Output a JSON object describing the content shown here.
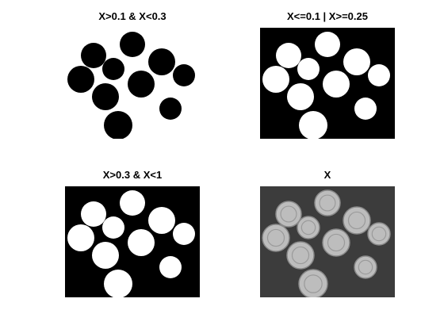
{
  "chart_data": [
    {
      "type": "image",
      "title": "X>0.1 & X<0.3",
      "foreground": "#000000",
      "background": "#ffffff",
      "render": "mask"
    },
    {
      "type": "image",
      "title": "X<=0.1 | X>=0.25",
      "foreground": "#ffffff",
      "background": "#000000",
      "render": "mask"
    },
    {
      "type": "image",
      "title": "X>0.3 & X<1",
      "foreground": "#ffffff",
      "background": "#000000",
      "render": "mask"
    },
    {
      "type": "image",
      "title": "X",
      "foreground": "#bdbdbd",
      "background": "#3c3c3c",
      "render": "grayscale"
    }
  ]
}
